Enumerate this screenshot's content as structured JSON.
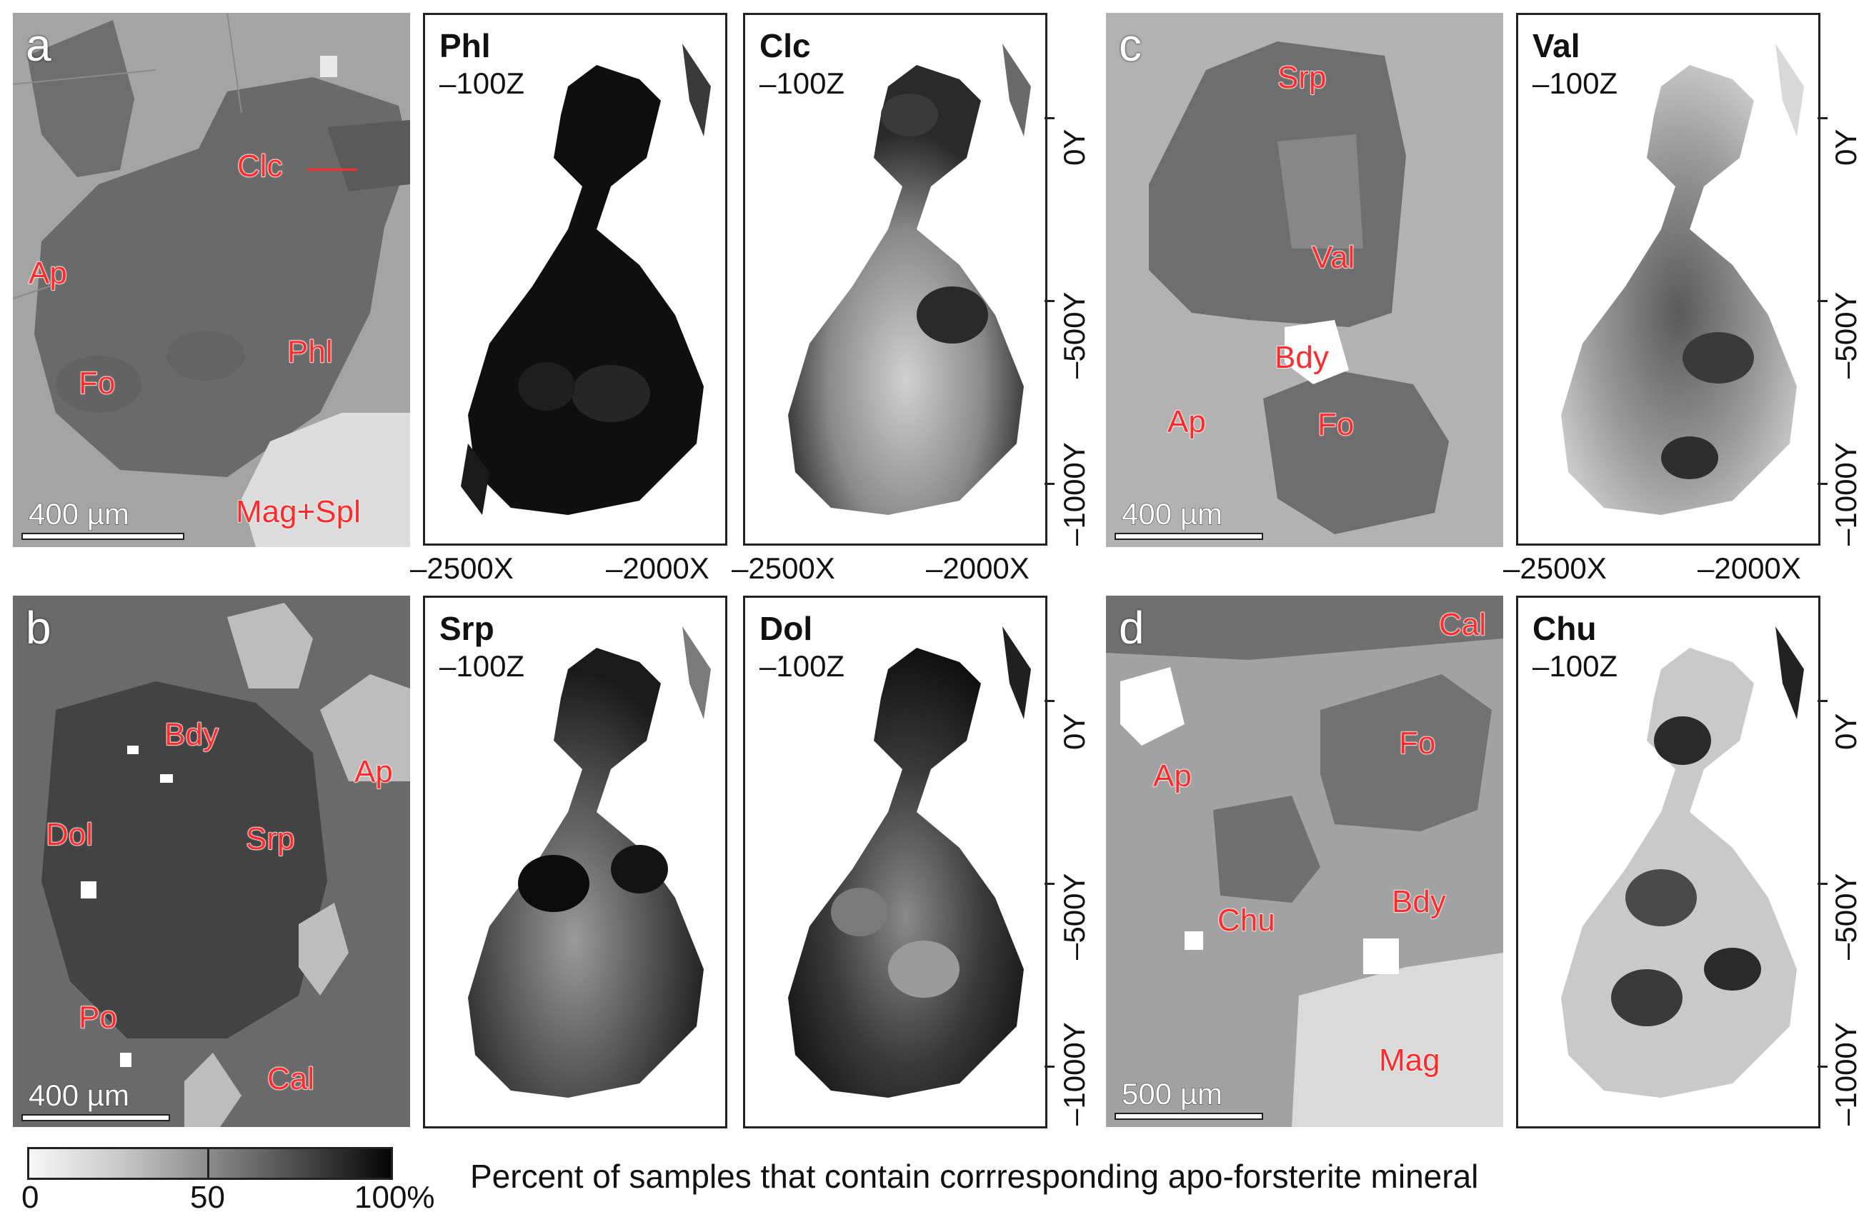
{
  "panels": {
    "a": {
      "letter": "a",
      "scale_label": "400 µm",
      "labels": {
        "clc": "Clc",
        "ap": "Ap",
        "phl": "Phl",
        "fo": "Fo",
        "magspl": "Mag+Spl"
      }
    },
    "b": {
      "letter": "b",
      "scale_label": "400 µm",
      "labels": {
        "bdy": "Bdy",
        "ap": "Ap",
        "dol": "Dol",
        "srp": "Srp",
        "po": "Po",
        "cal": "Cal"
      }
    },
    "c": {
      "letter": "c",
      "scale_label": "400 µm",
      "labels": {
        "srp": "Srp",
        "val": "Val",
        "bdy": "Bdy",
        "ap": "Ap",
        "fo": "Fo"
      }
    },
    "d": {
      "letter": "d",
      "scale_label": "500 µm",
      "labels": {
        "cal": "Cal",
        "fo": "Fo",
        "ap": "Ap",
        "chu": "Chu",
        "bdy": "Bdy",
        "mag": "Mag"
      }
    }
  },
  "maps": {
    "phl": {
      "title": "Phl",
      "z": "–100Z"
    },
    "clc": {
      "title": "Clc",
      "z": "–100Z"
    },
    "srp": {
      "title": "Srp",
      "z": "–100Z"
    },
    "dol": {
      "title": "Dol",
      "z": "–100Z"
    },
    "val": {
      "title": "Val",
      "z": "–100Z"
    },
    "chu": {
      "title": "Chu",
      "z": "–100Z"
    }
  },
  "axes": {
    "y_ticks": [
      "0Y",
      "–500Y",
      "–1000Y"
    ],
    "x_ticks": [
      "–2500X",
      "–2000X"
    ]
  },
  "colorbar": {
    "labels": [
      "0",
      "50",
      "100%"
    ]
  },
  "caption": "Percent of samples that contain corrresponding apo-forsterite mineral"
}
